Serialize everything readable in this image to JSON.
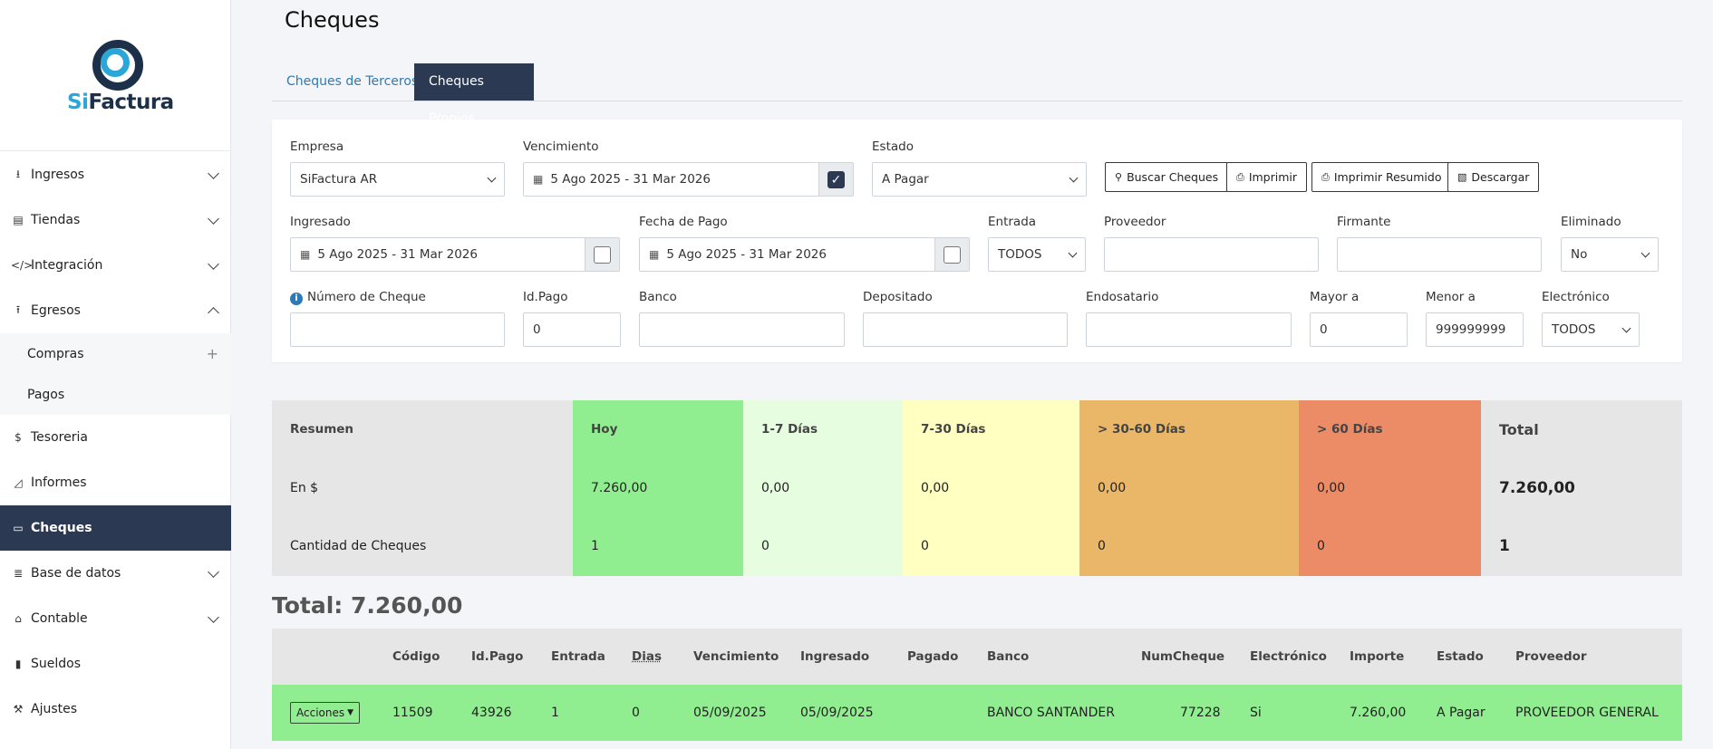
{
  "brand": {
    "logo_si": "Si",
    "logo_rest": "Factura"
  },
  "sidebar": {
    "items": [
      {
        "label": "Ingresos",
        "icon": "download-icon"
      },
      {
        "label": "Tiendas",
        "icon": "shop-icon"
      },
      {
        "label": "Integración",
        "icon": "code-icon"
      },
      {
        "label": "Egresos",
        "icon": "upload-icon"
      },
      {
        "label": "Compras"
      },
      {
        "label": "Pagos"
      },
      {
        "label": "Tesoreria",
        "icon": "dollar-icon"
      },
      {
        "label": "Informes",
        "icon": "chart-icon"
      },
      {
        "label": "Cheques",
        "icon": "card-icon"
      },
      {
        "label": "Base de datos",
        "icon": "database-icon"
      },
      {
        "label": "Contable",
        "icon": "bank-icon"
      },
      {
        "label": "Sueldos",
        "icon": "book-icon"
      },
      {
        "label": "Ajustes",
        "icon": "wrench-icon"
      }
    ]
  },
  "page": {
    "title": "Cheques"
  },
  "tabs": {
    "terceros": "Cheques de Terceros",
    "propios": "Cheques Propios"
  },
  "filters": {
    "empresa": {
      "label": "Empresa",
      "value": "SiFactura AR"
    },
    "vencimiento": {
      "label": "Vencimiento",
      "value": "5 Ago 2025 - 31 Mar 2026"
    },
    "estado": {
      "label": "Estado",
      "value": "A Pagar"
    },
    "ingresado": {
      "label": "Ingresado",
      "value": "5 Ago 2025 - 31 Mar 2026"
    },
    "fecha_pago": {
      "label": "Fecha de Pago",
      "value": "5 Ago 2025 - 31 Mar 2026"
    },
    "entrada": {
      "label": "Entrada",
      "value": "TODOS"
    },
    "proveedor": {
      "label": "Proveedor",
      "value": ""
    },
    "firmante": {
      "label": "Firmante",
      "value": ""
    },
    "eliminado": {
      "label": "Eliminado",
      "value": "No"
    },
    "numero_cheque": {
      "label": "Número de Cheque",
      "value": ""
    },
    "id_pago": {
      "label": "Id.Pago",
      "value": "0"
    },
    "banco": {
      "label": "Banco",
      "value": ""
    },
    "depositado": {
      "label": "Depositado",
      "value": ""
    },
    "endosatario": {
      "label": "Endosatario",
      "value": ""
    },
    "mayor_a": {
      "label": "Mayor a",
      "value": "0"
    },
    "menor_a": {
      "label": "Menor a",
      "value": "999999999"
    },
    "electronico": {
      "label": "Electrónico",
      "value": "TODOS"
    }
  },
  "buttons": {
    "buscar": "Buscar Cheques",
    "imprimir": "Imprimir",
    "imprimir_resumido": "Imprimir Resumido",
    "descargar": "Descargar"
  },
  "summary": {
    "header": [
      "Resumen",
      "Hoy",
      "1-7 Días",
      "7-30 Días",
      "> 30-60 Días",
      "> 60 Días",
      "Total"
    ],
    "en_pesos": [
      "En $",
      "7.260,00",
      "0,00",
      "0,00",
      "0,00",
      "0,00",
      "7.260,00"
    ],
    "cantidad": [
      "Cantidad de Cheques",
      "1",
      "0",
      "0",
      "0",
      "0",
      "1"
    ],
    "colors": [
      "#e6e6e6",
      "#90ee90",
      "#e6fde0",
      "#ffffc2",
      "#eab668",
      "#ec8c66",
      "#e6e6e6"
    ]
  },
  "total_label": "Total: 7.260,00",
  "table": {
    "columns": [
      "Código",
      "Id.Pago",
      "Entrada",
      "Dias",
      "Vencimiento",
      "Ingresado",
      "Pagado",
      "Banco",
      "NumCheque",
      "Electrónico",
      "Importe",
      "Estado",
      "Proveedor"
    ],
    "rows": [
      {
        "acciones": "Acciones",
        "cells": [
          "11509",
          "43926",
          "1",
          "0",
          "05/09/2025",
          "05/09/2025",
          "",
          "BANCO SANTANDER",
          "77228",
          "Si",
          "7.260,00",
          "A Pagar",
          "PROVEEDOR GENERAL"
        ]
      }
    ]
  }
}
